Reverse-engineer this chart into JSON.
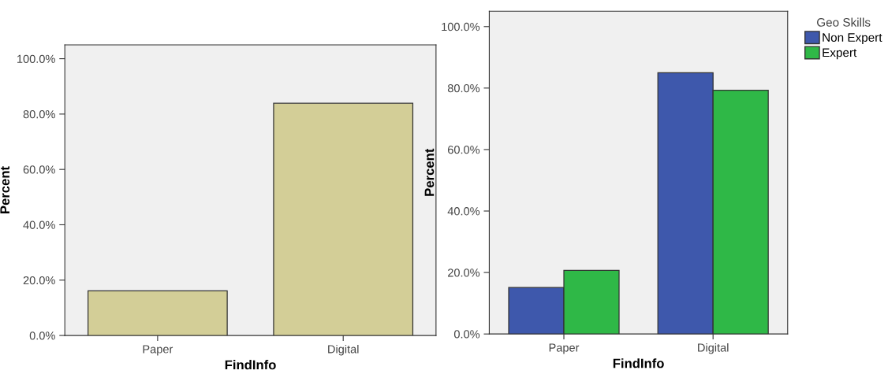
{
  "chart_data": [
    {
      "type": "bar",
      "categories": [
        "Paper",
        "Digital"
      ],
      "values": [
        16.1,
        83.9
      ],
      "color": "#d3ce97",
      "xlabel": "FindInfo",
      "ylabel": "Percent",
      "ylim": [
        0,
        105
      ],
      "yticks": [
        {
          "value": 0,
          "label": "0.0%"
        },
        {
          "value": 20,
          "label": "20.0%"
        },
        {
          "value": 40,
          "label": "40.0%"
        },
        {
          "value": 60,
          "label": "60.0%"
        },
        {
          "value": 80,
          "label": "80.0%"
        },
        {
          "value": 100,
          "label": "100.0%"
        }
      ],
      "grid": false,
      "legend": false
    },
    {
      "type": "bar",
      "categories": [
        "Paper",
        "Digital"
      ],
      "series": [
        {
          "name": "Non Expert",
          "color": "#3e58ac",
          "values": [
            15.1,
            85.0
          ]
        },
        {
          "name": "Expert",
          "color": "#2fb847",
          "values": [
            20.7,
            79.3
          ]
        }
      ],
      "xlabel": "FindInfo",
      "ylabel": "Percent",
      "legend_title": "Geo Skills",
      "legend": "top right",
      "ylim": [
        0,
        105
      ],
      "yticks": [
        {
          "value": 0,
          "label": "0.0%"
        },
        {
          "value": 20,
          "label": "20.0%"
        },
        {
          "value": 40,
          "label": "40.0%"
        },
        {
          "value": 60,
          "label": "60.0%"
        },
        {
          "value": 80,
          "label": "80.0%"
        },
        {
          "value": 100,
          "label": "100.0%"
        }
      ],
      "grid": false
    }
  ]
}
